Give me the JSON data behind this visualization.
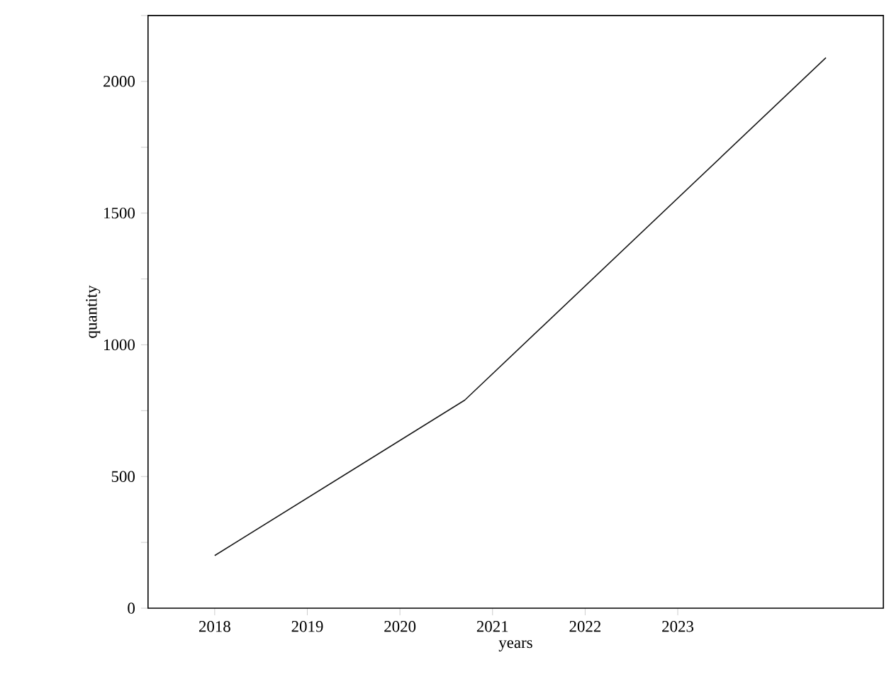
{
  "chart_data": {
    "type": "line",
    "xlabel": "years",
    "ylabel": "quantity",
    "x": [
      2018,
      2020.7,
      2024.6
    ],
    "series": [
      {
        "color": "#1a1a1a",
        "values": [
          200,
          790,
          2090
        ]
      }
    ],
    "xlim": [
      2017.28,
      2025.22
    ],
    "xticks": [
      2018,
      2019,
      2020,
      2021,
      2022,
      2023
    ],
    "ylim": [
      0,
      2250
    ],
    "yticks": [
      0,
      {
        "value": 250,
        "label": null
      },
      500,
      {
        "value": 750,
        "label": null
      },
      1000,
      {
        "value": 1250,
        "label": null
      },
      1500,
      {
        "value": 1750,
        "label": null
      },
      2000,
      {
        "value": 2250,
        "label": null
      }
    ],
    "grid": false,
    "legend": false,
    "marker": "none",
    "line_style": "solid"
  }
}
